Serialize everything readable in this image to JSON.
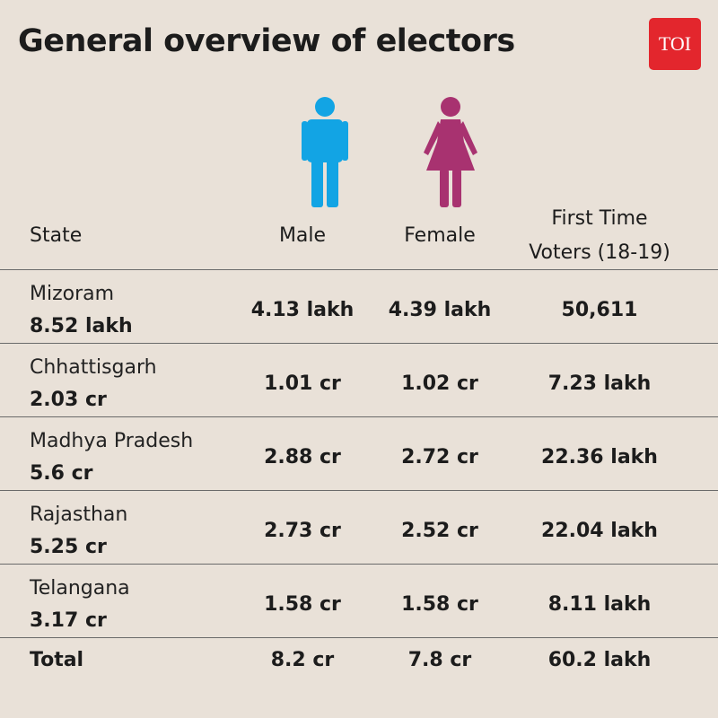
{
  "title": "General overview of electors",
  "logo_text": "TOI",
  "icons": {
    "male": "male-figure-icon",
    "female": "female-figure-icon"
  },
  "colors": {
    "background": "#e9e1d8",
    "male": "#12a4e4",
    "female": "#a83270",
    "logo": "#e3262d"
  },
  "chart_data": {
    "type": "table",
    "columns": [
      "State",
      "Male",
      "Female",
      "First Time Voters (18-19)"
    ],
    "header": {
      "state": "State",
      "male": "Male",
      "female": "Female",
      "first_line1": "First Time",
      "first_line2": "Voters (18-19)"
    },
    "rows": [
      {
        "state": "Mizoram",
        "total": "8.52 lakh",
        "male": "4.13 lakh",
        "female": "4.39 lakh",
        "first_time": "50,611"
      },
      {
        "state": "Chhattisgarh",
        "total": "2.03 cr",
        "male": "1.01 cr",
        "female": "1.02 cr",
        "first_time": "7.23 lakh"
      },
      {
        "state": "Madhya Pradesh",
        "total": "5.6 cr",
        "male": "2.88 cr",
        "female": "2.72 cr",
        "first_time": "22.36 lakh"
      },
      {
        "state": "Rajasthan",
        "total": "5.25 cr",
        "male": "2.73 cr",
        "female": "2.52 cr",
        "first_time": "22.04 lakh"
      },
      {
        "state": "Telangana",
        "total": "3.17 cr",
        "male": "1.58 cr",
        "female": "1.58 cr",
        "first_time": "8.11 lakh"
      }
    ],
    "total": {
      "label": "Total",
      "male": "8.2 cr",
      "female": "7.8 cr",
      "first_time": "60.2 lakh"
    }
  }
}
